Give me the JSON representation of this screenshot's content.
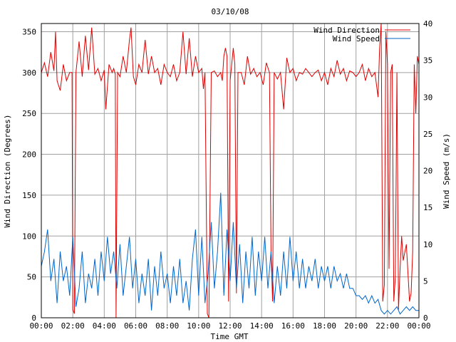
{
  "chart_data": {
    "type": "line",
    "title": "03/10/08",
    "xlabel": "Time GMT",
    "ylabel_left": "Wind Direction (Degrees)",
    "ylabel_right": "Wind Speed (m/s)",
    "x_tick_labels": [
      "00:00",
      "02:00",
      "04:00",
      "06:00",
      "08:00",
      "10:00",
      "12:00",
      "14:00",
      "16:00",
      "18:00",
      "20:00",
      "22:00",
      "00:00"
    ],
    "xlim_hours": [
      0,
      24
    ],
    "ylim_left": [
      0,
      360
    ],
    "ylim_right": [
      0,
      40
    ],
    "y_left_ticks": [
      "0",
      "50",
      "100",
      "150",
      "200",
      "250",
      "300",
      "350"
    ],
    "y_right_ticks": [
      "0",
      "5",
      "10",
      "15",
      "20",
      "25",
      "30",
      "35",
      "40"
    ],
    "grid": true,
    "legend_position": "top-right",
    "series": [
      {
        "name": "Wind Direction",
        "color": "#dd0000",
        "axis": "left",
        "points": [
          [
            0.0,
            300
          ],
          [
            0.2,
            312
          ],
          [
            0.4,
            295
          ],
          [
            0.6,
            325
          ],
          [
            0.8,
            302
          ],
          [
            0.9,
            350
          ],
          [
            1.0,
            290
          ],
          [
            1.2,
            278
          ],
          [
            1.4,
            310
          ],
          [
            1.6,
            290
          ],
          [
            1.8,
            300
          ],
          [
            1.95,
            300
          ],
          [
            2.0,
            10
          ],
          [
            2.1,
            5
          ],
          [
            2.2,
            300
          ],
          [
            2.4,
            338
          ],
          [
            2.6,
            295
          ],
          [
            2.8,
            345
          ],
          [
            3.0,
            303
          ],
          [
            3.2,
            355
          ],
          [
            3.4,
            298
          ],
          [
            3.6,
            305
          ],
          [
            3.8,
            290
          ],
          [
            4.0,
            303
          ],
          [
            4.1,
            255
          ],
          [
            4.3,
            310
          ],
          [
            4.5,
            300
          ],
          [
            4.6,
            305
          ],
          [
            4.7,
            298
          ],
          [
            4.75,
            0
          ],
          [
            4.85,
            300
          ],
          [
            5.0,
            295
          ],
          [
            5.2,
            320
          ],
          [
            5.4,
            300
          ],
          [
            5.6,
            340
          ],
          [
            5.7,
            355
          ],
          [
            5.85,
            295
          ],
          [
            6.0,
            285
          ],
          [
            6.2,
            310
          ],
          [
            6.4,
            300
          ],
          [
            6.6,
            340
          ],
          [
            6.8,
            298
          ],
          [
            7.0,
            320
          ],
          [
            7.2,
            300
          ],
          [
            7.4,
            305
          ],
          [
            7.6,
            285
          ],
          [
            7.8,
            310
          ],
          [
            8.0,
            300
          ],
          [
            8.2,
            295
          ],
          [
            8.4,
            310
          ],
          [
            8.6,
            290
          ],
          [
            8.8,
            300
          ],
          [
            9.0,
            350
          ],
          [
            9.2,
            298
          ],
          [
            9.4,
            342
          ],
          [
            9.6,
            295
          ],
          [
            9.8,
            320
          ],
          [
            10.0,
            300
          ],
          [
            10.2,
            305
          ],
          [
            10.3,
            280
          ],
          [
            10.4,
            300
          ],
          [
            10.55,
            5
          ],
          [
            10.65,
            0
          ],
          [
            10.8,
            300
          ],
          [
            11.0,
            302
          ],
          [
            11.2,
            295
          ],
          [
            11.4,
            300
          ],
          [
            11.5,
            290
          ],
          [
            11.6,
            320
          ],
          [
            11.7,
            330
          ],
          [
            11.8,
            320
          ],
          [
            11.9,
            20
          ],
          [
            12.0,
            290
          ],
          [
            12.2,
            330
          ],
          [
            12.3,
            310
          ],
          [
            12.4,
            30
          ],
          [
            12.5,
            300
          ],
          [
            12.7,
            300
          ],
          [
            12.9,
            285
          ],
          [
            13.1,
            320
          ],
          [
            13.3,
            298
          ],
          [
            13.5,
            305
          ],
          [
            13.7,
            295
          ],
          [
            13.9,
            300
          ],
          [
            14.1,
            285
          ],
          [
            14.3,
            312
          ],
          [
            14.5,
            300
          ],
          [
            14.6,
            80
          ],
          [
            14.7,
            20
          ],
          [
            14.8,
            300
          ],
          [
            15.0,
            292
          ],
          [
            15.2,
            300
          ],
          [
            15.4,
            255
          ],
          [
            15.6,
            318
          ],
          [
            15.8,
            300
          ],
          [
            16.0,
            305
          ],
          [
            16.2,
            290
          ],
          [
            16.4,
            300
          ],
          [
            16.6,
            298
          ],
          [
            16.8,
            305
          ],
          [
            17.0,
            300
          ],
          [
            17.2,
            295
          ],
          [
            17.4,
            300
          ],
          [
            17.6,
            303
          ],
          [
            17.8,
            290
          ],
          [
            18.0,
            300
          ],
          [
            18.2,
            285
          ],
          [
            18.4,
            305
          ],
          [
            18.6,
            295
          ],
          [
            18.8,
            315
          ],
          [
            19.0,
            298
          ],
          [
            19.2,
            305
          ],
          [
            19.4,
            290
          ],
          [
            19.6,
            302
          ],
          [
            19.8,
            300
          ],
          [
            20.0,
            295
          ],
          [
            20.2,
            300
          ],
          [
            20.4,
            310
          ],
          [
            20.6,
            290
          ],
          [
            20.8,
            305
          ],
          [
            21.0,
            295
          ],
          [
            21.2,
            300
          ],
          [
            21.4,
            270
          ],
          [
            21.5,
            330
          ],
          [
            21.6,
            360
          ],
          [
            21.7,
            20
          ],
          [
            21.8,
            40
          ],
          [
            21.9,
            350
          ],
          [
            22.0,
            310
          ],
          [
            22.1,
            60
          ],
          [
            22.2,
            300
          ],
          [
            22.3,
            310
          ],
          [
            22.4,
            20
          ],
          [
            22.5,
            50
          ],
          [
            22.6,
            300
          ],
          [
            22.7,
            10
          ],
          [
            22.8,
            60
          ],
          [
            22.9,
            100
          ],
          [
            23.0,
            70
          ],
          [
            23.2,
            90
          ],
          [
            23.4,
            20
          ],
          [
            23.5,
            30
          ],
          [
            23.6,
            80
          ],
          [
            23.7,
            310
          ],
          [
            23.8,
            250
          ],
          [
            23.9,
            320
          ],
          [
            24.0,
            310
          ]
        ]
      },
      {
        "name": "Wind Speed",
        "color": "#0066cc",
        "axis": "right",
        "points": [
          [
            0.0,
            7
          ],
          [
            0.2,
            9
          ],
          [
            0.4,
            12
          ],
          [
            0.6,
            5
          ],
          [
            0.8,
            8
          ],
          [
            1.0,
            2
          ],
          [
            1.2,
            9
          ],
          [
            1.4,
            5
          ],
          [
            1.6,
            7
          ],
          [
            1.8,
            3
          ],
          [
            2.0,
            11
          ],
          [
            2.2,
            1.5
          ],
          [
            2.4,
            4
          ],
          [
            2.6,
            9
          ],
          [
            2.8,
            2
          ],
          [
            3.0,
            6
          ],
          [
            3.2,
            4
          ],
          [
            3.4,
            8
          ],
          [
            3.6,
            3
          ],
          [
            3.8,
            9
          ],
          [
            4.0,
            5
          ],
          [
            4.2,
            11
          ],
          [
            4.4,
            6
          ],
          [
            4.6,
            9
          ],
          [
            4.8,
            4
          ],
          [
            5.0,
            10
          ],
          [
            5.2,
            3
          ],
          [
            5.4,
            7
          ],
          [
            5.6,
            11
          ],
          [
            5.8,
            4
          ],
          [
            6.0,
            8
          ],
          [
            6.2,
            2
          ],
          [
            6.4,
            6
          ],
          [
            6.6,
            3
          ],
          [
            6.8,
            8
          ],
          [
            7.0,
            1
          ],
          [
            7.2,
            7
          ],
          [
            7.4,
            3
          ],
          [
            7.6,
            9
          ],
          [
            7.8,
            4
          ],
          [
            8.0,
            6
          ],
          [
            8.2,
            2
          ],
          [
            8.4,
            7
          ],
          [
            8.6,
            3
          ],
          [
            8.8,
            8
          ],
          [
            9.0,
            2
          ],
          [
            9.2,
            5
          ],
          [
            9.4,
            1
          ],
          [
            9.6,
            8
          ],
          [
            9.8,
            12
          ],
          [
            10.0,
            3
          ],
          [
            10.2,
            11
          ],
          [
            10.4,
            2
          ],
          [
            10.6,
            6
          ],
          [
            10.8,
            13
          ],
          [
            11.0,
            4
          ],
          [
            11.2,
            9
          ],
          [
            11.4,
            17
          ],
          [
            11.6,
            3
          ],
          [
            11.8,
            12
          ],
          [
            12.0,
            5
          ],
          [
            12.2,
            13
          ],
          [
            12.4,
            4
          ],
          [
            12.6,
            10
          ],
          [
            12.8,
            2
          ],
          [
            13.0,
            9
          ],
          [
            13.2,
            4
          ],
          [
            13.4,
            11
          ],
          [
            13.6,
            3
          ],
          [
            13.8,
            9
          ],
          [
            14.0,
            5
          ],
          [
            14.2,
            11
          ],
          [
            14.4,
            4
          ],
          [
            14.6,
            9
          ],
          [
            14.8,
            2
          ],
          [
            15.0,
            7
          ],
          [
            15.2,
            3
          ],
          [
            15.4,
            9
          ],
          [
            15.6,
            4
          ],
          [
            15.8,
            11
          ],
          [
            16.0,
            5
          ],
          [
            16.2,
            9
          ],
          [
            16.4,
            4
          ],
          [
            16.6,
            8
          ],
          [
            16.8,
            4
          ],
          [
            17.0,
            7
          ],
          [
            17.2,
            5
          ],
          [
            17.4,
            8
          ],
          [
            17.6,
            4
          ],
          [
            17.8,
            7
          ],
          [
            18.0,
            5
          ],
          [
            18.2,
            7
          ],
          [
            18.4,
            4
          ],
          [
            18.6,
            7
          ],
          [
            18.8,
            5
          ],
          [
            19.0,
            6
          ],
          [
            19.2,
            4
          ],
          [
            19.4,
            6
          ],
          [
            19.6,
            4
          ],
          [
            19.8,
            4
          ],
          [
            20.0,
            3
          ],
          [
            20.2,
            3
          ],
          [
            20.4,
            2.5
          ],
          [
            20.6,
            3
          ],
          [
            20.8,
            2
          ],
          [
            21.0,
            3
          ],
          [
            21.2,
            2
          ],
          [
            21.4,
            2.5
          ],
          [
            21.6,
            1
          ],
          [
            21.8,
            0.5
          ],
          [
            22.0,
            1
          ],
          [
            22.2,
            0.5
          ],
          [
            22.4,
            1
          ],
          [
            22.6,
            1.5
          ],
          [
            22.8,
            0.5
          ],
          [
            23.0,
            1
          ],
          [
            23.2,
            1.5
          ],
          [
            23.4,
            1
          ],
          [
            23.6,
            1.5
          ],
          [
            23.8,
            1
          ],
          [
            24.0,
            1
          ]
        ]
      }
    ]
  }
}
